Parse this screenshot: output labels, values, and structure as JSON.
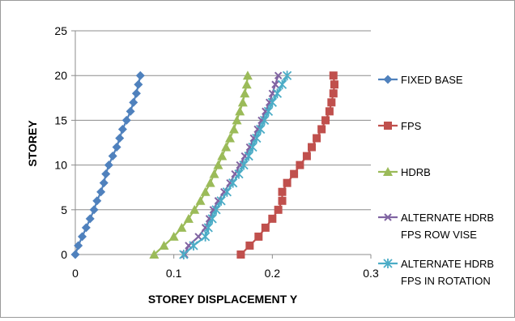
{
  "chart_data": {
    "type": "line",
    "title": "",
    "xlabel": "STOREY DISPLACEMENT Y",
    "ylabel": "STOREY",
    "xlim": [
      0,
      0.3
    ],
    "ylim": [
      0,
      25
    ],
    "xticks": [
      "0",
      "0.1",
      "0.2",
      "0.3"
    ],
    "yticks": [
      "0",
      "5",
      "10",
      "15",
      "20",
      "25"
    ],
    "grid": "horizontal",
    "legend_position": "right",
    "series": [
      {
        "name": "FIXED BASE",
        "color": "#4F81BD",
        "marker": "diamond",
        "x": [
          0,
          0.003,
          0.007,
          0.011,
          0.015,
          0.019,
          0.022,
          0.026,
          0.029,
          0.031,
          0.034,
          0.038,
          0.042,
          0.045,
          0.048,
          0.052,
          0.056,
          0.059,
          0.062,
          0.064,
          0.066
        ],
        "y": [
          0,
          1,
          2,
          3,
          4,
          5,
          6,
          7,
          8,
          9,
          10,
          11,
          12,
          13,
          14,
          15,
          16,
          17,
          18,
          19,
          20
        ]
      },
      {
        "name": "FPS",
        "color": "#C0504D",
        "marker": "square",
        "x": [
          0.168,
          0.177,
          0.186,
          0.193,
          0.2,
          0.206,
          0.21,
          0.21,
          0.215,
          0.222,
          0.228,
          0.235,
          0.24,
          0.245,
          0.25,
          0.254,
          0.258,
          0.26,
          0.262,
          0.263,
          0.262
        ],
        "y": [
          0,
          1,
          2,
          3,
          4,
          5,
          6,
          7,
          8,
          9,
          10,
          11,
          12,
          13,
          14,
          15,
          16,
          17,
          18,
          19,
          20
        ]
      },
      {
        "name": "HDRB",
        "color": "#9BBB59",
        "marker": "triangle",
        "x": [
          0.08,
          0.09,
          0.1,
          0.108,
          0.115,
          0.121,
          0.127,
          0.132,
          0.137,
          0.141,
          0.145,
          0.149,
          0.153,
          0.157,
          0.161,
          0.164,
          0.167,
          0.17,
          0.172,
          0.174,
          0.175
        ],
        "y": [
          0,
          1,
          2,
          3,
          4,
          5,
          6,
          7,
          8,
          9,
          10,
          11,
          12,
          13,
          14,
          15,
          16,
          17,
          18,
          19,
          20
        ]
      },
      {
        "name": "ALTERNATE HDRB FPS ROW VISE",
        "color": "#8064A2",
        "marker": "x",
        "x": [
          0.111,
          0.115,
          0.125,
          0.132,
          0.136,
          0.14,
          0.145,
          0.151,
          0.157,
          0.162,
          0.167,
          0.172,
          0.177,
          0.181,
          0.185,
          0.189,
          0.193,
          0.197,
          0.2,
          0.203,
          0.206
        ],
        "y": [
          0,
          1,
          2,
          3,
          4,
          5,
          6,
          7,
          8,
          9,
          10,
          11,
          12,
          13,
          14,
          15,
          16,
          17,
          18,
          19,
          20
        ]
      },
      {
        "name": "ALTERNATE HDRB FPS IN ROTATION",
        "color": "#4BACC6",
        "marker": "asterisk",
        "x": [
          0.11,
          0.12,
          0.132,
          0.135,
          0.139,
          0.143,
          0.148,
          0.154,
          0.16,
          0.166,
          0.171,
          0.176,
          0.18,
          0.184,
          0.188,
          0.192,
          0.196,
          0.2,
          0.205,
          0.21,
          0.215
        ],
        "y": [
          0,
          1,
          2,
          3,
          4,
          5,
          6,
          7,
          8,
          9,
          10,
          11,
          12,
          13,
          14,
          15,
          16,
          17,
          18,
          19,
          20
        ]
      }
    ],
    "legend": [
      [
        "FIXED BASE"
      ],
      [
        "FPS"
      ],
      [
        "HDRB"
      ],
      [
        "ALTERNATE HDRB",
        "FPS ROW VISE"
      ],
      [
        "ALTERNATE HDRB",
        "FPS IN ROTATION"
      ]
    ]
  }
}
